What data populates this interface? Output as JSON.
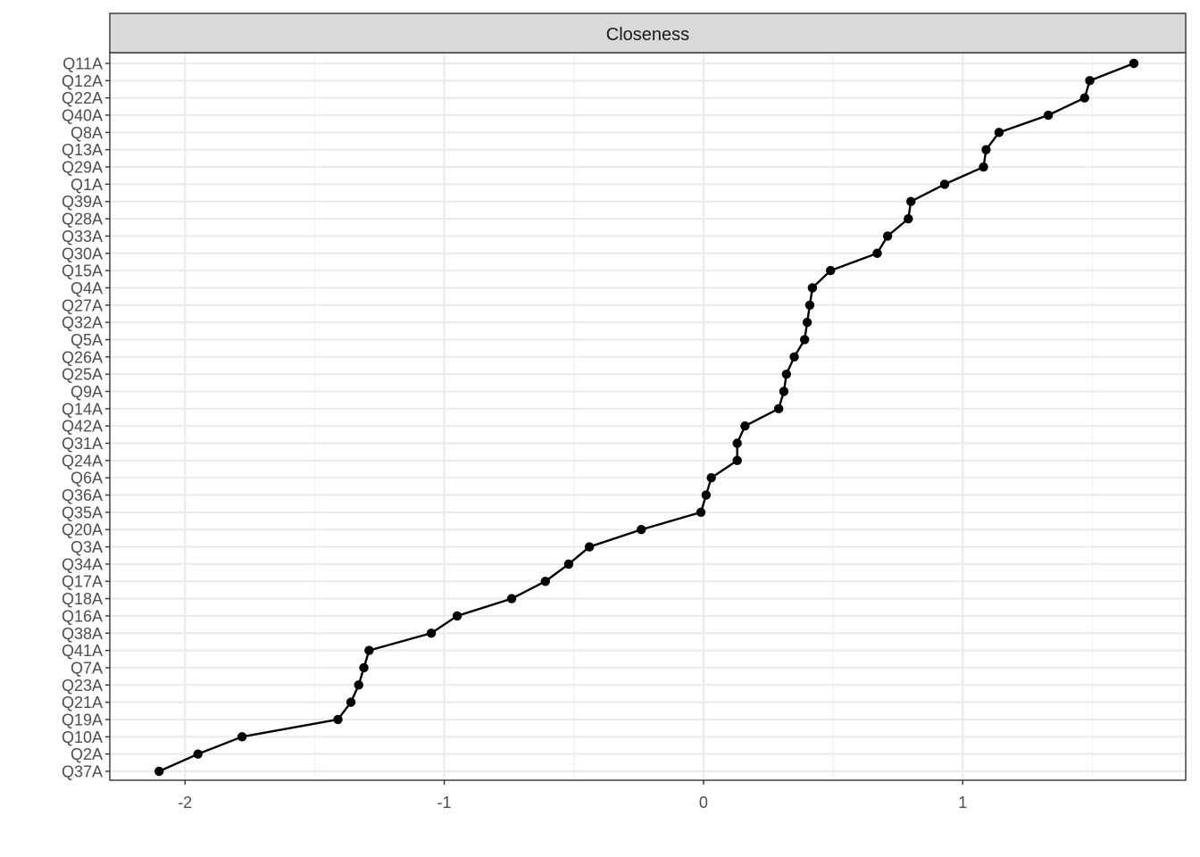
{
  "chart_data": {
    "type": "line",
    "facet_title": "Closeness",
    "xlabel": "",
    "ylabel": "",
    "xlim": [
      -2.29,
      1.86
    ],
    "x_ticks": [
      -2,
      -1,
      0,
      1
    ],
    "x_tick_labels": [
      "-2",
      "-1",
      "0",
      "1"
    ],
    "grid": true,
    "categories": [
      "Q11A",
      "Q12A",
      "Q22A",
      "Q40A",
      "Q8A",
      "Q13A",
      "Q29A",
      "Q1A",
      "Q39A",
      "Q28A",
      "Q33A",
      "Q30A",
      "Q15A",
      "Q4A",
      "Q27A",
      "Q32A",
      "Q5A",
      "Q26A",
      "Q25A",
      "Q9A",
      "Q14A",
      "Q42A",
      "Q31A",
      "Q24A",
      "Q6A",
      "Q36A",
      "Q35A",
      "Q20A",
      "Q3A",
      "Q34A",
      "Q17A",
      "Q18A",
      "Q16A",
      "Q38A",
      "Q41A",
      "Q7A",
      "Q23A",
      "Q21A",
      "Q19A",
      "Q10A",
      "Q2A",
      "Q37A"
    ],
    "values": [
      1.66,
      1.49,
      1.47,
      1.33,
      1.14,
      1.09,
      1.08,
      0.93,
      0.8,
      0.79,
      0.71,
      0.67,
      0.49,
      0.42,
      0.41,
      0.4,
      0.39,
      0.35,
      0.32,
      0.31,
      0.29,
      0.16,
      0.13,
      0.13,
      0.03,
      0.01,
      -0.01,
      -0.24,
      -0.44,
      -0.52,
      -0.61,
      -0.74,
      -0.95,
      -1.05,
      -1.29,
      -1.31,
      -1.33,
      -1.36,
      -1.41,
      -1.78,
      -1.95,
      -2.1
    ],
    "point_color": "#000000",
    "line_color": "#000000",
    "strip_fill": "#d9d9d9"
  }
}
